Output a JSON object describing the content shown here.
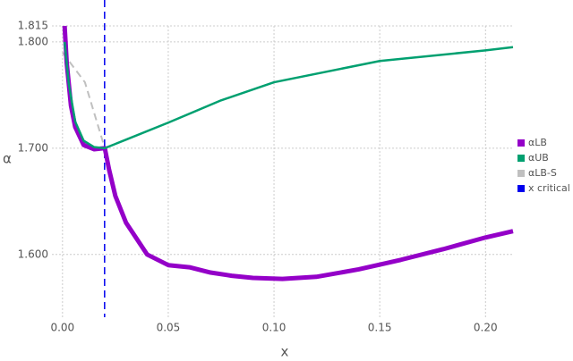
{
  "chart_data": {
    "type": "line",
    "x_label": "x",
    "y_label": "α",
    "xlim": [
      -0.005,
      0.213
    ],
    "ylim": [
      1.541,
      1.815
    ],
    "xticks": [
      {
        "value": 0,
        "label": "0.00"
      },
      {
        "value": 0.05,
        "label": "0.05"
      },
      {
        "value": 0.1,
        "label": "0.10"
      },
      {
        "value": 0.15,
        "label": "0.15"
      },
      {
        "value": 0.2,
        "label": "0.20"
      }
    ],
    "yticks": [
      {
        "value": 1.6,
        "label": "1.600"
      },
      {
        "value": 1.7,
        "label": "1.700"
      },
      {
        "value": 1.8,
        "label": "1.800"
      },
      {
        "value": 1.815,
        "label": "1.815"
      }
    ],
    "grid": true,
    "series": [
      {
        "name": "αLB",
        "color": "#9400c8",
        "width": 5,
        "x": [
          0.001,
          0.002,
          0.004,
          0.006,
          0.01,
          0.015,
          0.02,
          0.022,
          0.025,
          0.03,
          0.04,
          0.05,
          0.06,
          0.07,
          0.08,
          0.09,
          0.104,
          0.12,
          0.14,
          0.16,
          0.18,
          0.2,
          0.213
        ],
        "values": [
          1.815,
          1.78,
          1.74,
          1.72,
          1.703,
          1.699,
          1.7,
          1.68,
          1.655,
          1.63,
          1.6,
          1.59,
          1.588,
          1.583,
          1.58,
          1.578,
          1.577,
          1.579,
          1.586,
          1.595,
          1.605,
          1.616,
          1.622
        ]
      },
      {
        "name": "αUB",
        "color": "#00a070",
        "width": 2.5,
        "x": [
          0.001,
          0.003,
          0.006,
          0.01,
          0.015,
          0.02,
          0.03,
          0.05,
          0.075,
          0.1,
          0.15,
          0.2,
          0.213
        ],
        "values": [
          1.8,
          1.76,
          1.725,
          1.707,
          1.701,
          1.7,
          1.708,
          1.724,
          1.745,
          1.762,
          1.782,
          1.792,
          1.795
        ]
      },
      {
        "name": "αLB-S",
        "color": "#c0c0c0",
        "width": 2,
        "dash": true,
        "x": [
          0,
          0.0106,
          0.02
        ],
        "values": [
          1.79,
          1.762,
          1.7
        ]
      }
    ],
    "vline": {
      "name": "x critical",
      "color": "#0000ee",
      "x": 0.0199
    }
  }
}
